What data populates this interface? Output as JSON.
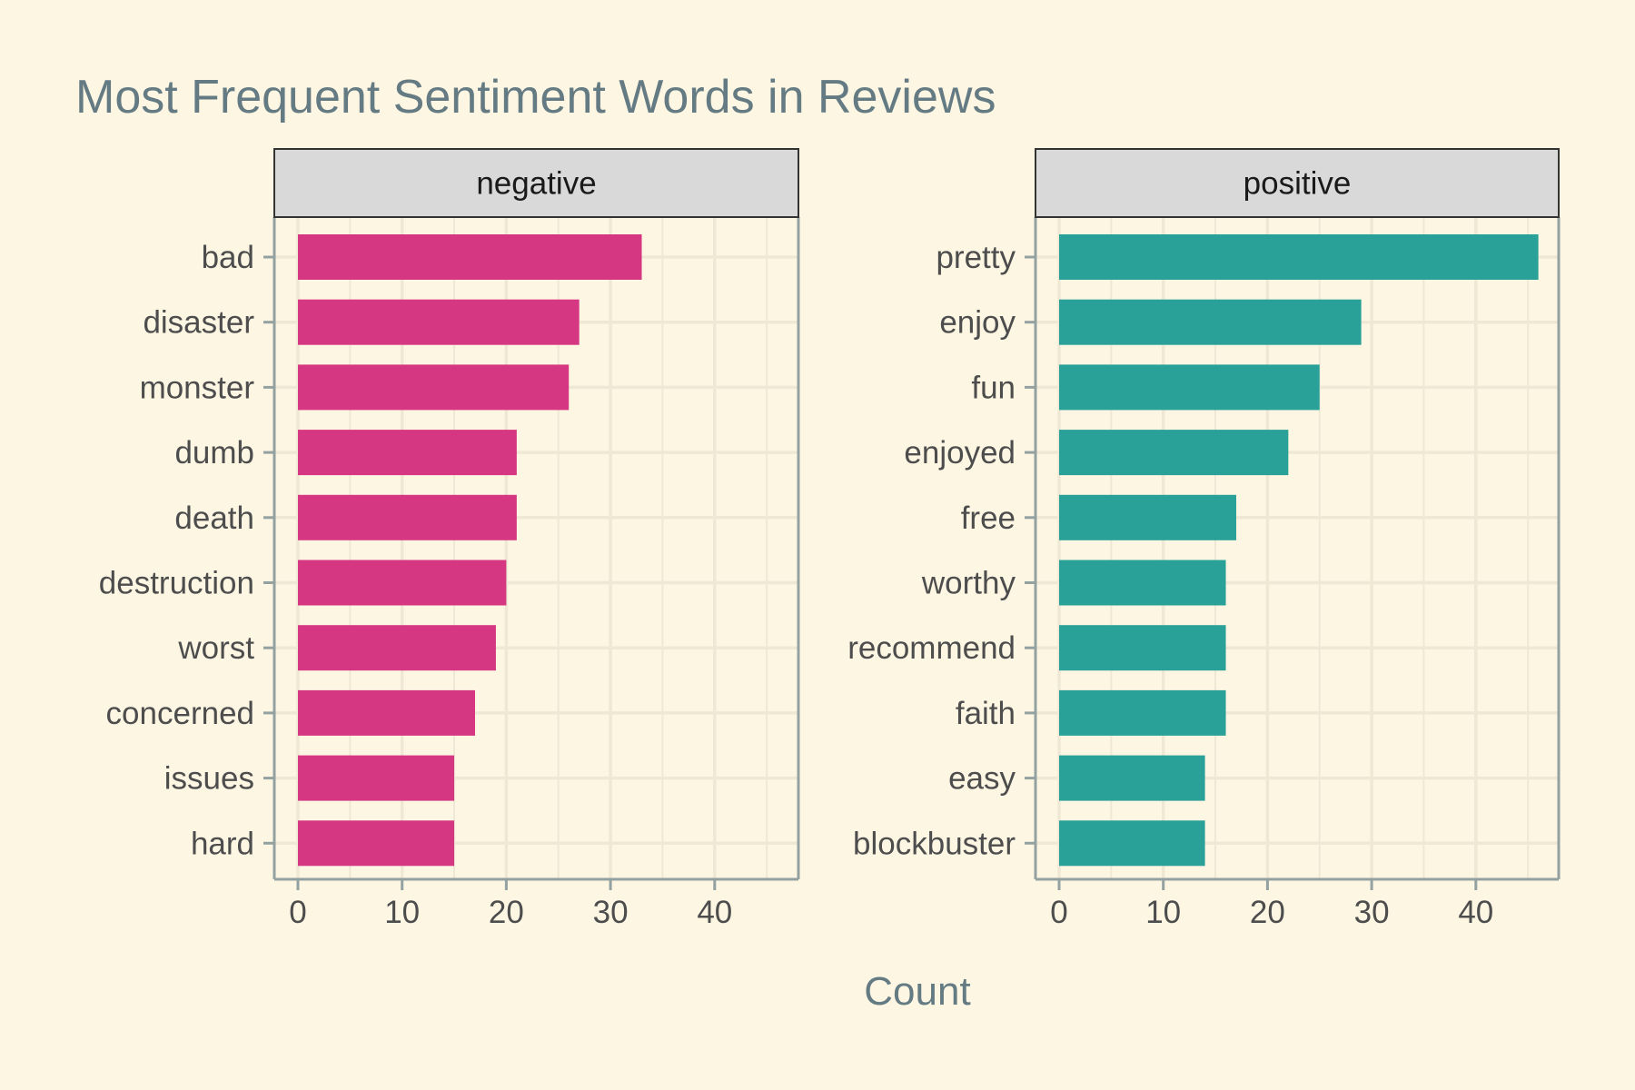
{
  "chart_data": {
    "type": "bar",
    "orientation": "horizontal",
    "title": "Most Frequent Sentiment Words in Reviews",
    "xlabel": "Count",
    "ylabel": "",
    "xlim": [
      0,
      48
    ],
    "xticks": [
      0,
      10,
      20,
      30,
      40
    ],
    "grid": true,
    "facets": [
      {
        "name": "negative",
        "color": "#d63782",
        "categories": [
          "bad",
          "disaster",
          "monster",
          "dumb",
          "death",
          "destruction",
          "worst",
          "concerned",
          "issues",
          "hard"
        ],
        "values": [
          33,
          27,
          26,
          21,
          21,
          20,
          19,
          17,
          15,
          15
        ]
      },
      {
        "name": "positive",
        "color": "#2aa198",
        "categories": [
          "pretty",
          "enjoy",
          "fun",
          "enjoyed",
          "free",
          "worthy",
          "recommend",
          "faith",
          "easy",
          "blockbuster"
        ],
        "values": [
          46,
          29,
          25,
          22,
          17,
          16,
          16,
          16,
          14,
          14
        ]
      }
    ]
  },
  "colors": {
    "background": "#fdf6e3",
    "grid": "#eee8d5",
    "axis": "#93a1a1",
    "strip_fill": "#d9d9d9",
    "title": "#657b83"
  }
}
